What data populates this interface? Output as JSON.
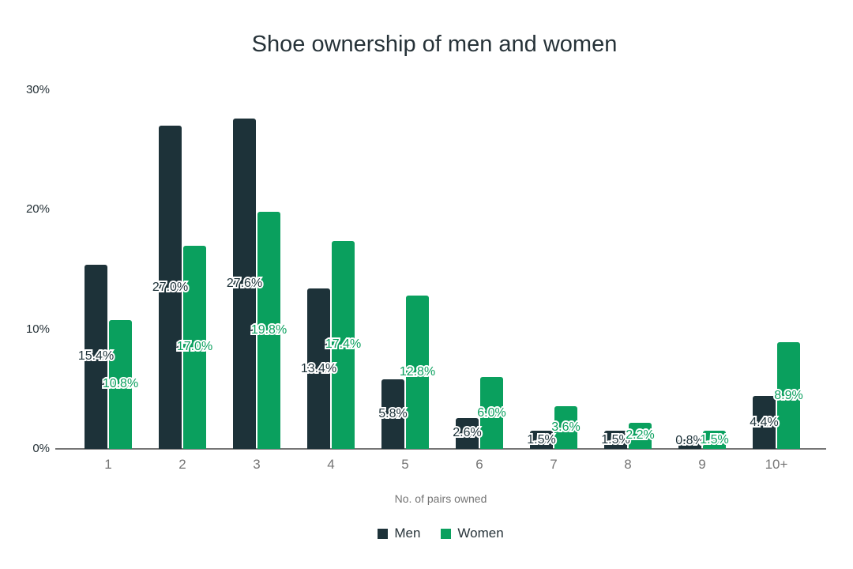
{
  "title": "Shoe ownership of men and women",
  "chart_data": {
    "type": "bar",
    "title": "Shoe ownership of men and women",
    "categories": [
      "1",
      "2",
      "3",
      "4",
      "5",
      "6",
      "7",
      "8",
      "9",
      "10+"
    ],
    "series": [
      {
        "name": "Men",
        "color": "#1d3239",
        "values": [
          15.4,
          27.0,
          27.6,
          13.4,
          5.8,
          2.6,
          1.5,
          1.5,
          0.8,
          4.4
        ]
      },
      {
        "name": "Women",
        "color": "#0aa05e",
        "values": [
          10.8,
          17.0,
          19.8,
          17.4,
          12.8,
          6.0,
          3.6,
          2.2,
          1.5,
          8.9
        ]
      }
    ],
    "xlabel": "No. of pairs owned",
    "ylabel": "",
    "ylim": [
      0,
      30
    ],
    "yticks": [
      0,
      10,
      20,
      30
    ],
    "ytick_format": "{v}%",
    "data_label_format": "{v}%",
    "grid": false,
    "legend_position": "bottom",
    "data_labels": true
  },
  "colors": {
    "men_bar": "#1d3239",
    "women_bar": "#0aa05e",
    "title_text": "#263238",
    "ytick_text": "#263238",
    "xtick_text": "#757575",
    "axis_line": "#757575",
    "background": "#ffffff"
  }
}
